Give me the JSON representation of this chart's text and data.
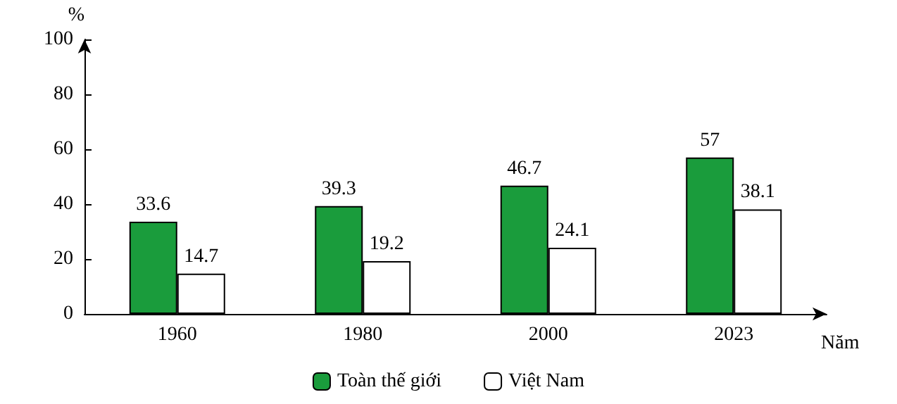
{
  "chart_data": {
    "type": "bar",
    "xlabel": "Năm",
    "ylabel": "%",
    "categories": [
      "1960",
      "1980",
      "2000",
      "2023"
    ],
    "series": [
      {
        "name": "Toàn thế giới",
        "color": "#1a9c3c",
        "values": [
          33.6,
          39.3,
          46.7,
          57
        ]
      },
      {
        "name": "Việt Nam",
        "color": "#ffffff",
        "values": [
          14.7,
          19.2,
          24.1,
          38.1
        ]
      }
    ],
    "ylim": [
      0,
      100
    ],
    "yticks": [
      0,
      20,
      40,
      60,
      80,
      100
    ],
    "data_labels": true,
    "grid": false,
    "legend": "bottom"
  }
}
